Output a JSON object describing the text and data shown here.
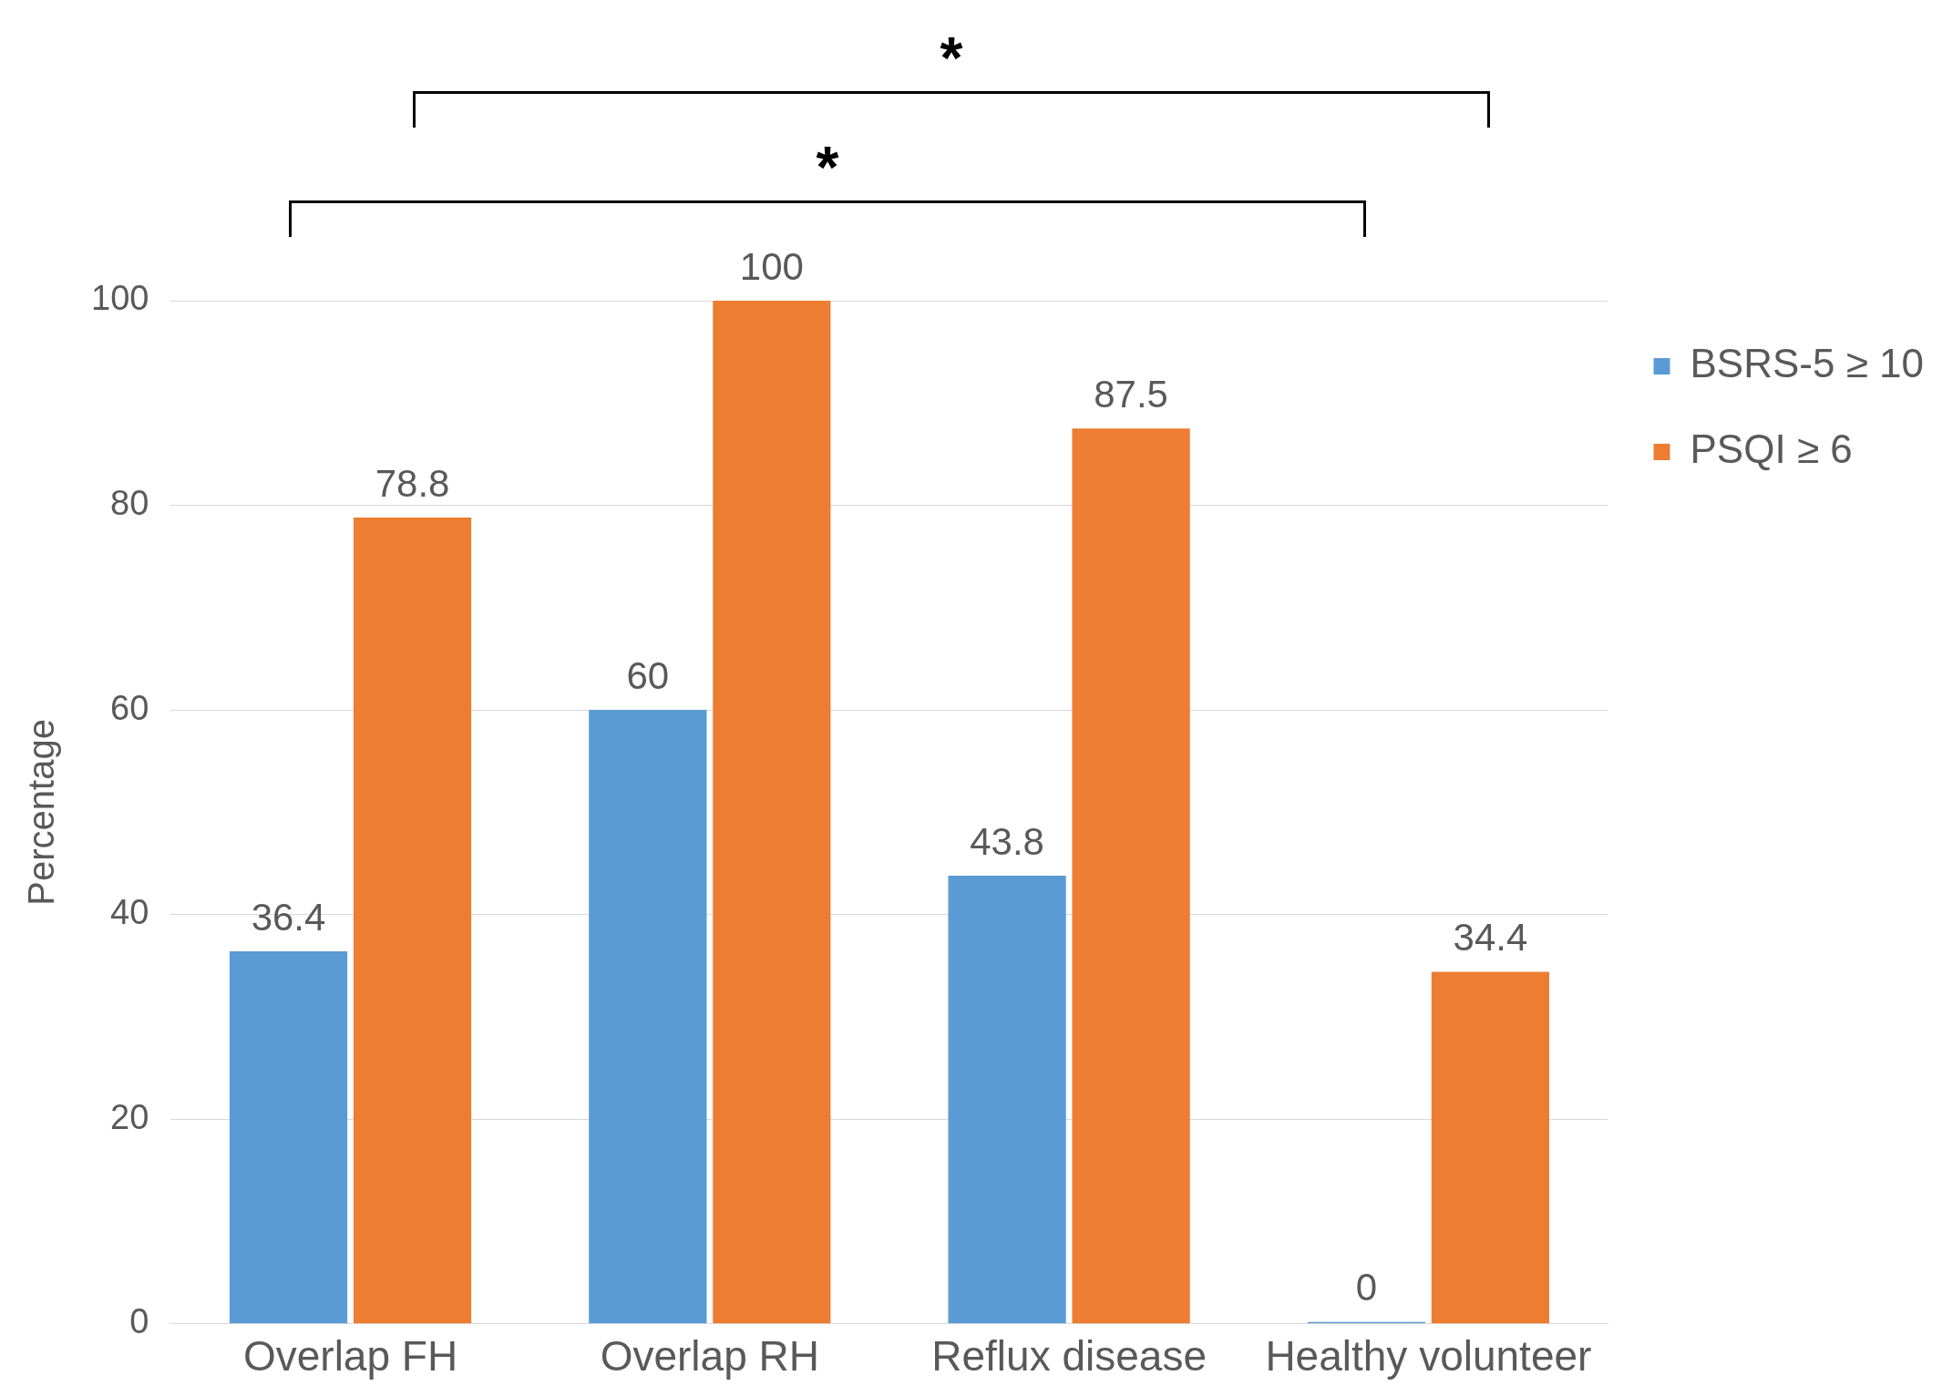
{
  "chart_data": {
    "type": "bar",
    "ylabel": "Percentage",
    "categories": [
      "Overlap FH",
      "Overlap RH",
      "Reflux disease",
      "Healthy volunteer"
    ],
    "series": [
      {
        "name": "BSRS-5 ≥ 10",
        "color": "#5b9bd5",
        "values": [
          36.4,
          60,
          43.8,
          0
        ]
      },
      {
        "name": "PSQI ≥ 6",
        "color": "#ed7d31",
        "values": [
          78.8,
          100,
          87.5,
          34.4
        ]
      }
    ],
    "ylim": [
      0,
      100
    ],
    "yticks": [
      0,
      20,
      40,
      60,
      80,
      100
    ],
    "grid": "y",
    "legend": "top right",
    "data_labels": true,
    "annotations": [
      "*",
      "*"
    ]
  }
}
